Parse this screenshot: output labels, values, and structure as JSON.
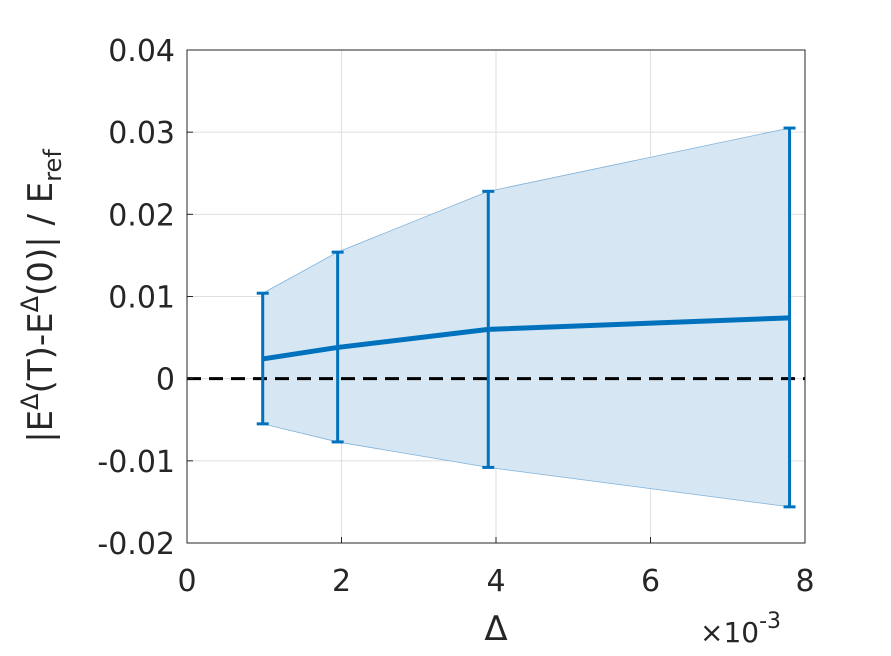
{
  "chart_data": {
    "type": "line",
    "xlabel": "Δ",
    "ylabel": {
      "main": "|E",
      "sup1": "Δ",
      "mid": "(T)-E",
      "sup2": "Δ",
      "end": "(0)| / E",
      "sub": "ref"
    },
    "x_multiplier": {
      "prefix": "×10",
      "exponent": "-3"
    },
    "xlim": [
      0,
      0.008
    ],
    "ylim": [
      -0.02,
      0.04
    ],
    "xticks": [
      0,
      0.002,
      0.004,
      0.006,
      0.008
    ],
    "xtick_labels": [
      "0",
      "2",
      "4",
      "6",
      "8"
    ],
    "yticks": [
      -0.02,
      -0.01,
      0,
      0.01,
      0.02,
      0.03,
      0.04
    ],
    "ytick_labels": [
      "-0.02",
      "-0.01",
      "0",
      "0.01",
      "0.02",
      "0.03",
      "0.04"
    ],
    "grid": true,
    "reference_line": {
      "y": 0,
      "style": "dashed",
      "color": "#000000"
    },
    "series": [
      {
        "x": [
          0.00098,
          0.00195,
          0.0039,
          0.0078
        ],
        "mean": [
          0.0024,
          0.0038,
          0.006,
          0.0074
        ],
        "upper": [
          0.0104,
          0.0154,
          0.0228,
          0.0305
        ],
        "lower": [
          -0.0055,
          -0.0077,
          -0.0108,
          -0.0156
        ],
        "color": "#0072BD",
        "fill_color": "#d6e6f3"
      }
    ]
  }
}
